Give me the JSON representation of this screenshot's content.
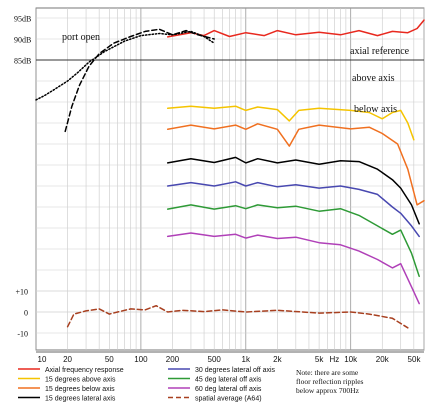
{
  "chart_data": {
    "type": "line",
    "x_scale": "log",
    "x_unit_label": "Hz",
    "xlim": [
      10,
      50000
    ],
    "x_ticks": [
      {
        "value": 10,
        "label": "10"
      },
      {
        "value": 20,
        "label": "20"
      },
      {
        "value": 50,
        "label": "50"
      },
      {
        "value": 100,
        "label": "100"
      },
      {
        "value": 200,
        "label": "200"
      },
      {
        "value": 500,
        "label": "500"
      },
      {
        "value": 1000,
        "label": "1k"
      },
      {
        "value": 2000,
        "label": "2k"
      },
      {
        "value": 5000,
        "label": "5k"
      },
      {
        "value": 10000,
        "label": "10k"
      },
      {
        "value": 20000,
        "label": "20k"
      },
      {
        "value": 50000,
        "label": "50k"
      }
    ],
    "y_labels_upper": [
      "95dB",
      "90dB",
      "85dB"
    ],
    "y_labels_lower": [
      "+10",
      "0",
      "-10"
    ],
    "grid": true,
    "annotations": {
      "port_open": "port open",
      "axial_reference": "axial reference",
      "above_axis": "above axis",
      "below_axis": "below axis",
      "note": [
        "Note: there are some",
        "floor reflection ripples",
        "below approx 700Hz"
      ]
    },
    "series": [
      {
        "name": "Axial frequency response",
        "color": "#e8281e",
        "dash": "solid",
        "points": [
          [
            180,
            90.5
          ],
          [
            300,
            91.5
          ],
          [
            400,
            90.8
          ],
          [
            500,
            92.0
          ],
          [
            700,
            90.6
          ],
          [
            1000,
            91.5
          ],
          [
            1500,
            90.8
          ],
          [
            2000,
            92.0
          ],
          [
            3000,
            91.0
          ],
          [
            5000,
            91.6
          ],
          [
            8000,
            91.0
          ],
          [
            12000,
            92.0
          ],
          [
            18000,
            90.8
          ],
          [
            25000,
            91.8
          ],
          [
            35000,
            91.5
          ],
          [
            43000,
            92.5
          ],
          [
            50000,
            94.5
          ]
        ]
      },
      {
        "name": "15 degrees above axis",
        "color": "#f5c400",
        "dash": "solid",
        "points": [
          [
            180,
            73.5
          ],
          [
            300,
            74.0
          ],
          [
            500,
            73.5
          ],
          [
            800,
            74.0
          ],
          [
            1000,
            73.0
          ],
          [
            1300,
            73.8
          ],
          [
            2000,
            73.2
          ],
          [
            2600,
            70.5
          ],
          [
            3200,
            73.0
          ],
          [
            5000,
            73.5
          ],
          [
            10000,
            73.0
          ],
          [
            15000,
            72.5
          ],
          [
            20000,
            71.0
          ],
          [
            25000,
            72.5
          ],
          [
            30000,
            73.0
          ],
          [
            35000,
            70.0
          ],
          [
            40000,
            66.0
          ]
        ]
      },
      {
        "name": "15 degrees below axis",
        "color": "#f07020",
        "dash": "solid",
        "points": [
          [
            180,
            68.5
          ],
          [
            300,
            69.5
          ],
          [
            500,
            68.6
          ],
          [
            800,
            69.5
          ],
          [
            1000,
            68.5
          ],
          [
            1300,
            69.8
          ],
          [
            2000,
            68.5
          ],
          [
            2600,
            64.5
          ],
          [
            3200,
            68.5
          ],
          [
            5000,
            69.5
          ],
          [
            10000,
            68.6
          ],
          [
            15000,
            69.0
          ],
          [
            20000,
            67.5
          ],
          [
            28000,
            65.0
          ],
          [
            35000,
            59.0
          ],
          [
            43000,
            50.5
          ],
          [
            50000,
            51.5
          ]
        ]
      },
      {
        "name": "15 degrees lateral axis",
        "color": "#000000",
        "dash": "solid",
        "points": [
          [
            180,
            60.5
          ],
          [
            300,
            61.5
          ],
          [
            500,
            60.6
          ],
          [
            800,
            61.8
          ],
          [
            1000,
            60.5
          ],
          [
            1300,
            61.5
          ],
          [
            2000,
            60.5
          ],
          [
            3000,
            61.2
          ],
          [
            5000,
            60.2
          ],
          [
            8000,
            61.0
          ],
          [
            12000,
            60.8
          ],
          [
            18000,
            59.0
          ],
          [
            25000,
            56.5
          ],
          [
            30000,
            54.5
          ],
          [
            38000,
            50.5
          ],
          [
            45000,
            46.0
          ]
        ]
      },
      {
        "name": "30 degrees lateral off axis",
        "color": "#4848b0",
        "dash": "solid",
        "points": [
          [
            180,
            55.0
          ],
          [
            300,
            55.8
          ],
          [
            500,
            55.0
          ],
          [
            800,
            56.0
          ],
          [
            1000,
            55.0
          ],
          [
            1300,
            55.8
          ],
          [
            2000,
            54.8
          ],
          [
            3000,
            55.3
          ],
          [
            5000,
            54.5
          ],
          [
            8000,
            55.0
          ],
          [
            12000,
            54.2
          ],
          [
            18000,
            53.0
          ],
          [
            25000,
            50.0
          ],
          [
            30000,
            48.5
          ],
          [
            38000,
            45.5
          ],
          [
            45000,
            43.0
          ]
        ]
      },
      {
        "name": "45 deg lateral off axis",
        "color": "#2e9a36",
        "dash": "solid",
        "points": [
          [
            180,
            49.5
          ],
          [
            300,
            50.5
          ],
          [
            500,
            49.5
          ],
          [
            800,
            50.3
          ],
          [
            1000,
            49.6
          ],
          [
            1300,
            50.5
          ],
          [
            2000,
            49.8
          ],
          [
            3000,
            50.2
          ],
          [
            5000,
            49.0
          ],
          [
            8000,
            49.6
          ],
          [
            12000,
            48.0
          ],
          [
            18000,
            45.5
          ],
          [
            25000,
            43.5
          ],
          [
            30000,
            44.5
          ],
          [
            38000,
            39.0
          ],
          [
            45000,
            33.5
          ]
        ]
      },
      {
        "name": "60 deg lateral off axis",
        "color": "#b040b8",
        "dash": "solid",
        "points": [
          [
            180,
            43.0
          ],
          [
            300,
            43.8
          ],
          [
            500,
            43.0
          ],
          [
            800,
            43.5
          ],
          [
            1000,
            42.6
          ],
          [
            1300,
            43.3
          ],
          [
            2000,
            42.5
          ],
          [
            3000,
            42.8
          ],
          [
            5000,
            41.5
          ],
          [
            8000,
            41.0
          ],
          [
            12000,
            39.5
          ],
          [
            18000,
            37.5
          ],
          [
            25000,
            35.5
          ],
          [
            30000,
            36.5
          ],
          [
            38000,
            31.0
          ],
          [
            45000,
            27.0
          ]
        ]
      },
      {
        "name": "spatial average (A64)",
        "color": "#a84020",
        "dash": "dashed",
        "points": [
          [
            20,
            -7.0
          ],
          [
            23,
            -1.0
          ],
          [
            30,
            0.5
          ],
          [
            40,
            1.5
          ],
          [
            50,
            -1.0
          ],
          [
            60,
            0.0
          ],
          [
            80,
            1.5
          ],
          [
            110,
            1.0
          ],
          [
            140,
            3.0
          ],
          [
            180,
            0.0
          ],
          [
            250,
            0.8
          ],
          [
            400,
            0.2
          ],
          [
            600,
            1.0
          ],
          [
            1000,
            0.0
          ],
          [
            2000,
            0.8
          ],
          [
            5000,
            -0.5
          ],
          [
            10000,
            0.0
          ],
          [
            15000,
            -1.0
          ],
          [
            25000,
            -3.0
          ],
          [
            35000,
            -7.5
          ]
        ]
      },
      {
        "name": "",
        "color": "#000000",
        "dash": "dashed",
        "points": [
          [
            19,
            68.0
          ],
          [
            22,
            74.0
          ],
          [
            26,
            79.0
          ],
          [
            32,
            83.5
          ],
          [
            40,
            86.5
          ],
          [
            55,
            89.0
          ],
          [
            80,
            90.6
          ],
          [
            110,
            91.8
          ],
          [
            150,
            92.3
          ],
          [
            200,
            91.0
          ],
          [
            270,
            92.0
          ],
          [
            350,
            91.0
          ],
          [
            500,
            90.0
          ]
        ]
      },
      {
        "name": "",
        "color": "#000000",
        "dash": "dotted",
        "points": [
          [
            10,
            75.5
          ],
          [
            12,
            76.5
          ],
          [
            15,
            78.0
          ],
          [
            20,
            80.0
          ],
          [
            25,
            82.0
          ],
          [
            32,
            84.5
          ],
          [
            45,
            87.0
          ],
          [
            70,
            89.5
          ],
          [
            100,
            90.8
          ],
          [
            150,
            91.3
          ],
          [
            200,
            91.0
          ],
          [
            300,
            91.8
          ],
          [
            400,
            90.6
          ],
          [
            500,
            89.0
          ]
        ]
      }
    ]
  },
  "legend": [
    {
      "label": "Axial frequency response",
      "color": "#e8281e",
      "dash": "solid"
    },
    {
      "label": "15 degrees above axis",
      "color": "#f5c400",
      "dash": "solid"
    },
    {
      "label": "15 degrees below axis",
      "color": "#f07020",
      "dash": "solid"
    },
    {
      "label": "15 degrees lateral axis",
      "color": "#000000",
      "dash": "solid"
    },
    {
      "label": "30 degrees lateral off axis",
      "color": "#4848b0",
      "dash": "solid"
    },
    {
      "label": "45 deg lateral off axis",
      "color": "#2e9a36",
      "dash": "solid"
    },
    {
      "label": "60 deg lateral off axis",
      "color": "#b040b8",
      "dash": "solid"
    },
    {
      "label": "spatial average (A64)",
      "color": "#a84020",
      "dash": "dashed"
    }
  ]
}
